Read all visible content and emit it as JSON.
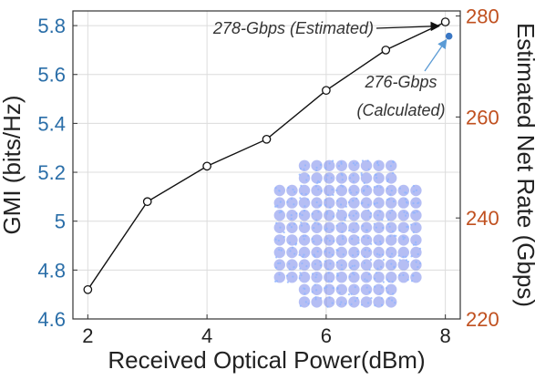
{
  "chart_data": {
    "type": "line",
    "title": "",
    "xlabel": "Received Optical Power(dBm)",
    "ylabel": "GMI (bits/Hz)",
    "y2label": "Estimated Net Rate (Gbps)",
    "x": [
      2,
      3,
      4,
      5,
      6,
      7,
      8
    ],
    "xlim": [
      1.75,
      8.25
    ],
    "xticks": [
      "2",
      "4",
      "6",
      "8"
    ],
    "ylim": [
      4.6,
      5.86
    ],
    "yticks": [
      "4.6",
      "4.8",
      "5",
      "5.2",
      "5.4",
      "5.6",
      "5.8"
    ],
    "y2lim": [
      220,
      281
    ],
    "y2ticks": [
      "220",
      "240",
      "260",
      "280"
    ],
    "grid": true,
    "series": [
      {
        "name": "",
        "axis": "left",
        "marker": "open-circle",
        "color": "#111111",
        "values": [
          4.72,
          5.08,
          5.225,
          5.335,
          5.535,
          5.7,
          5.815
        ]
      },
      {
        "name": "",
        "axis": "right",
        "marker": "filled-circle",
        "color": "#3a77c4",
        "points": [
          {
            "x": 8,
            "y": 276
          }
        ]
      }
    ],
    "annotations": [
      {
        "text": "278-Gbps (Estimated)",
        "target": {
          "x": 8,
          "y": 278
        }
      },
      {
        "line1": "276-Gbps",
        "line2": "(Calculated)",
        "target": {
          "x": 8,
          "y": 276
        }
      }
    ],
    "colors": {
      "left_axis": "#2a6ea8",
      "right_axis": "#c0501f",
      "grid": "#dcdcdc",
      "inset": "#5b6fe6"
    }
  }
}
